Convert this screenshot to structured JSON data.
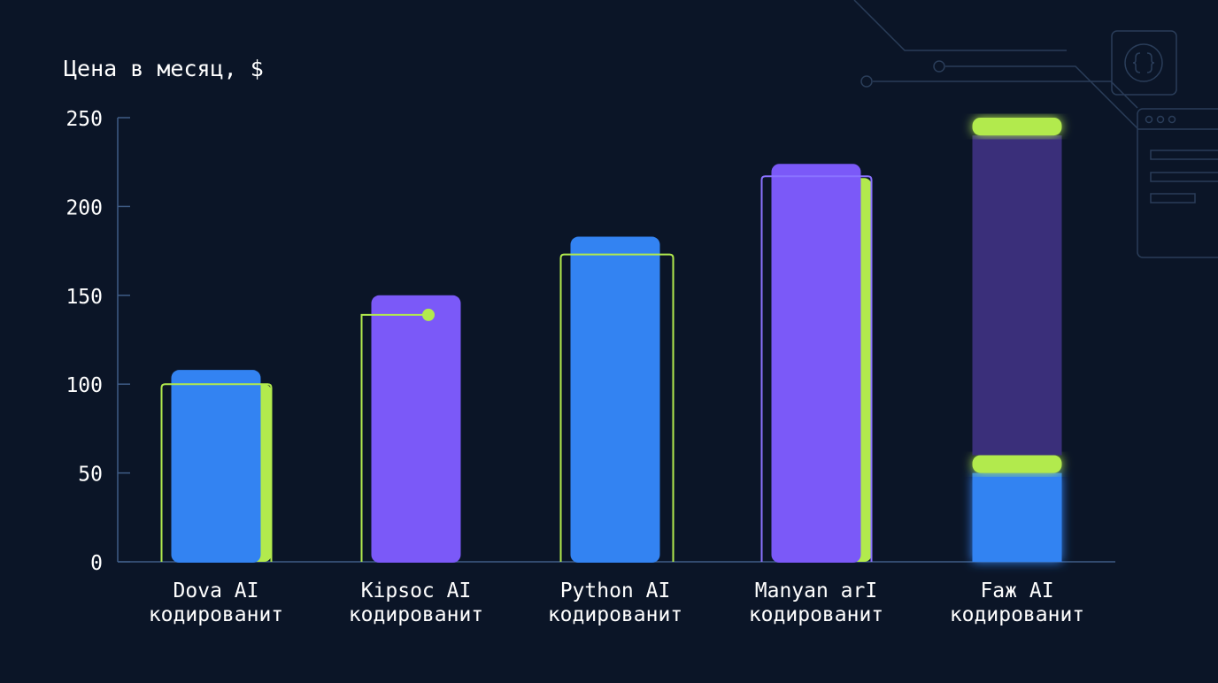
{
  "chart_data": {
    "type": "bar",
    "title": "Цена в месяц, $",
    "xlabel": "",
    "ylabel": "",
    "ylim": [
      0,
      250
    ],
    "yticks": [
      0,
      50,
      100,
      150,
      200,
      250
    ],
    "grid": false,
    "legend": "none",
    "categories": [
      {
        "line1": "Dova AI",
        "line2": "кодированит"
      },
      {
        "line1": "Kipsoc AI",
        "line2": "кодированит"
      },
      {
        "line1": "Python AI",
        "line2": "кодированит"
      },
      {
        "line1": "Manyan arI",
        "line2": "кодированит"
      },
      {
        "line1": "Faж AI",
        "line2": "кодированит"
      }
    ],
    "bars": [
      {
        "value": 108,
        "color": "#3383f2",
        "backing_value": 100,
        "backing_color": "#b2ea4d",
        "outline_value": 100,
        "outline_color": "#b2ea4d"
      },
      {
        "value": 150,
        "color": "#7b59f8",
        "outline_value": 139,
        "outline_color": "#b2ea4d",
        "marker_value": 139,
        "marker_color": "#b2ea4d"
      },
      {
        "value": 183,
        "color": "#3383f2",
        "outline_value": 173,
        "outline_color": "#b2ea4d"
      },
      {
        "value": 224,
        "color": "#7b59f8",
        "backing_value": 216,
        "backing_color": "#b2ea4d",
        "outline_value": 217,
        "outline_color": "#8a72ff"
      },
      {
        "value": 250,
        "segments": [
          {
            "from": 0,
            "to": 50,
            "color": "#3383f2"
          },
          {
            "from": 50,
            "to": 60,
            "color": "#b2ea4d"
          },
          {
            "from": 60,
            "to": 240,
            "color": "#3a2f7a"
          },
          {
            "from": 240,
            "to": 250,
            "color": "#b2ea4d"
          }
        ]
      }
    ],
    "colors": {
      "background": "#0b1527",
      "axis": "#3f5c86",
      "text": "#ffffff",
      "decor": "#2a3d59"
    }
  }
}
